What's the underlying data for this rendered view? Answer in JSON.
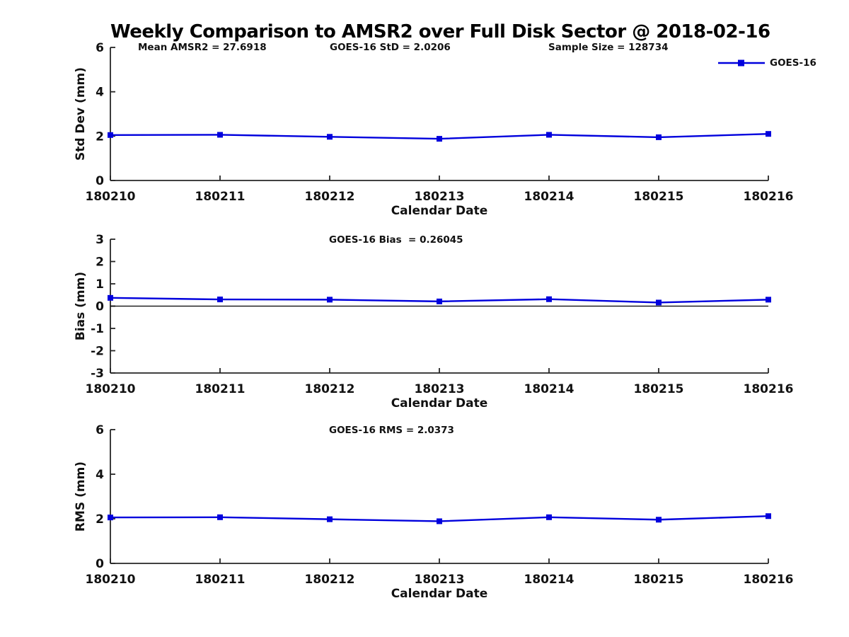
{
  "page_title": "Weekly Comparison to AMSR2 over Full Disk Sector @ 2018-02-16",
  "annotations": {
    "mean_amsr2": "Mean AMSR2 = 27.6918",
    "goes16_std": "GOES-16 StD = 2.0206",
    "sample_size": "Sample Size = 128734"
  },
  "legend": {
    "label": "GOES-16",
    "color": "#0000dd",
    "marker": "square",
    "position": "upper-right"
  },
  "colors": {
    "line": "#0000dd",
    "axis": "#262626",
    "text": "#111111",
    "zero_line": "#000000",
    "background": "#ffffff"
  },
  "chart_data": [
    {
      "type": "line",
      "title": "",
      "ylabel": "Std Dev (mm)",
      "xlabel": "Calendar Date",
      "categories": [
        "180210",
        "180211",
        "180212",
        "180213",
        "180214",
        "180215",
        "180216"
      ],
      "series": [
        {
          "name": "GOES-16",
          "values": [
            2.05,
            2.06,
            1.97,
            1.88,
            2.06,
            1.95,
            2.1
          ]
        }
      ],
      "ylim": [
        0,
        6
      ],
      "yticks": [
        0,
        2,
        4,
        6
      ],
      "grid": false,
      "marker": "square",
      "zero_line": false
    },
    {
      "type": "line",
      "title": "GOES-16 Bias  = 0.26045",
      "ylabel": "Bias (mm)",
      "xlabel": "Calendar Date",
      "categories": [
        "180210",
        "180211",
        "180212",
        "180213",
        "180214",
        "180215",
        "180216"
      ],
      "series": [
        {
          "name": "GOES-16",
          "values": [
            0.37,
            0.3,
            0.29,
            0.21,
            0.31,
            0.16,
            0.29
          ]
        }
      ],
      "ylim": [
        -3,
        3
      ],
      "yticks": [
        -3,
        -2,
        -1,
        0,
        1,
        2,
        3
      ],
      "grid": false,
      "marker": "square",
      "zero_line": true
    },
    {
      "type": "line",
      "title": "GOES-16 RMS = 2.0373",
      "ylabel": "RMS (mm)",
      "xlabel": "Calendar Date",
      "categories": [
        "180210",
        "180211",
        "180212",
        "180213",
        "180214",
        "180215",
        "180216"
      ],
      "series": [
        {
          "name": "GOES-16",
          "values": [
            2.06,
            2.07,
            1.98,
            1.89,
            2.07,
            1.96,
            2.12
          ]
        }
      ],
      "ylim": [
        0,
        6
      ],
      "yticks": [
        0,
        2,
        4,
        6
      ],
      "grid": false,
      "marker": "square",
      "zero_line": false
    }
  ]
}
